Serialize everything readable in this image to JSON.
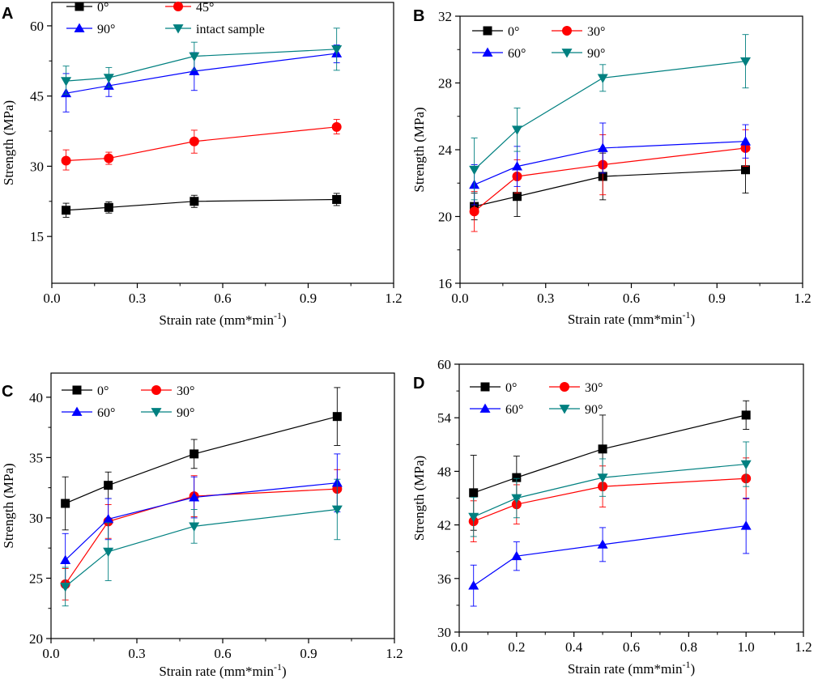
{
  "figure": {
    "marker_colors": {
      "square": "#000000",
      "circle": "#ff0000",
      "triangle-up": "#0000ff",
      "triangle-down": "#008080"
    }
  },
  "chart_data": [
    {
      "panel": "A",
      "type": "line",
      "xlabel": "Strain rate (mm*min-1)",
      "xlabel_text": "Strain rate (mm*min",
      "xlabel_sup": "-1",
      "xlabel_close": ")",
      "ylabel": "Strength (MPa)",
      "xlim": [
        0,
        1.2
      ],
      "ylim": [
        5,
        65
      ],
      "xticks": [
        0.0,
        0.3,
        0.6,
        0.9,
        1.2
      ],
      "xtick_labels": [
        "0.0",
        "0.3",
        "0.6",
        "0.9",
        "1.2"
      ],
      "yticks": [
        15,
        30,
        45,
        60
      ],
      "ytick_labels": [
        "15",
        "30",
        "45",
        "60"
      ],
      "x": [
        0.05,
        0.2,
        0.5,
        1.0
      ],
      "legend_position": "top",
      "legend_cols": 2,
      "series": [
        {
          "name": "0°",
          "marker": "square",
          "color": "#000000",
          "values": [
            20.6,
            21.2,
            22.5,
            22.9
          ],
          "err_low": [
            1.5,
            1.2,
            1.3,
            1.3
          ],
          "err_high": [
            1.5,
            1.2,
            1.3,
            1.3
          ]
        },
        {
          "name": "45°",
          "marker": "circle",
          "color": "#ff0000",
          "values": [
            31.2,
            31.7,
            35.3,
            38.4
          ],
          "err_low": [
            2.0,
            1.3,
            2.5,
            1.5
          ],
          "err_high": [
            2.3,
            1.3,
            2.4,
            1.6
          ]
        },
        {
          "name": "90°",
          "marker": "triangle-up",
          "color": "#0000ff",
          "values": [
            45.6,
            47.2,
            50.3,
            54.1
          ],
          "err_low": [
            4.0,
            2.3,
            4.1,
            2.0
          ],
          "err_high": [
            4.2,
            2.3,
            4.0,
            1.8
          ]
        },
        {
          "name": "intact  sample",
          "marker": "triangle-down",
          "color": "#008080",
          "values": [
            48.2,
            48.9,
            53.5,
            55.0
          ],
          "err_low": [
            2.8,
            2.0,
            3.0,
            4.5
          ],
          "err_high": [
            3.2,
            2.2,
            3.0,
            4.5
          ]
        }
      ]
    },
    {
      "panel": "B",
      "type": "line",
      "xlabel": "Strain rate (mm*min-1)",
      "xlabel_text": "Strain rate (mm*min",
      "xlabel_sup": "-1",
      "xlabel_close": ")",
      "ylabel": "Strength (MPa)",
      "xlim": [
        0,
        1.2
      ],
      "ylim": [
        16,
        32
      ],
      "xticks": [
        0.0,
        0.3,
        0.6,
        0.9,
        1.2
      ],
      "xtick_labels": [
        "0.0",
        "0.3",
        "0.6",
        "0.9",
        "1.2"
      ],
      "yticks": [
        16,
        20,
        24,
        28,
        32
      ],
      "ytick_labels": [
        "16",
        "20",
        "24",
        "28",
        "32"
      ],
      "x": [
        0.05,
        0.2,
        0.5,
        1.0
      ],
      "legend_position": "top-left",
      "legend_cols": 2,
      "series": [
        {
          "name": "0°",
          "marker": "square",
          "color": "#000000",
          "values": [
            20.6,
            21.2,
            22.4,
            22.8
          ],
          "err_low": [
            0.8,
            1.2,
            1.4,
            1.4
          ],
          "err_high": [
            0.8,
            1.2,
            1.4,
            1.4
          ]
        },
        {
          "name": "30°",
          "marker": "circle",
          "color": "#ff0000",
          "values": [
            20.3,
            22.4,
            23.1,
            24.1
          ],
          "err_low": [
            1.2,
            1.0,
            1.8,
            1.1
          ],
          "err_high": [
            1.2,
            1.0,
            1.8,
            1.1
          ]
        },
        {
          "name": "60°",
          "marker": "triangle-up",
          "color": "#0000ff",
          "values": [
            21.9,
            23.0,
            24.1,
            24.5
          ],
          "err_low": [
            1.2,
            1.2,
            1.5,
            1.0
          ],
          "err_high": [
            1.2,
            1.2,
            1.5,
            1.0
          ]
        },
        {
          "name": "90°",
          "marker": "triangle-down",
          "color": "#008080",
          "values": [
            22.8,
            25.2,
            28.3,
            29.3
          ],
          "err_low": [
            1.8,
            1.3,
            0.8,
            1.6
          ],
          "err_high": [
            1.9,
            1.3,
            0.8,
            1.6
          ]
        }
      ]
    },
    {
      "panel": "C",
      "type": "line",
      "xlabel": "Strain rate  (mm*min-1)",
      "xlabel_text": "Strain rate  (mm*min",
      "xlabel_sup": "-1",
      "xlabel_close": ")",
      "ylabel": "Strength (MPa)",
      "xlim": [
        0,
        1.2
      ],
      "ylim": [
        20,
        42
      ],
      "xticks": [
        0.0,
        0.3,
        0.6,
        0.9,
        1.2
      ],
      "xtick_labels": [
        "0.0",
        "0.3",
        "0.6",
        "0.9",
        "1.2"
      ],
      "yticks": [
        20,
        25,
        30,
        35,
        40
      ],
      "ytick_labels": [
        "20",
        "25",
        "30",
        "35",
        "40"
      ],
      "x": [
        0.05,
        0.2,
        0.5,
        1.0
      ],
      "legend_position": "top-left",
      "legend_cols": 2,
      "series": [
        {
          "name": "0°",
          "marker": "square",
          "color": "#000000",
          "values": [
            31.2,
            32.7,
            35.3,
            38.4
          ],
          "err_low": [
            2.2,
            1.1,
            1.2,
            2.4
          ],
          "err_high": [
            2.2,
            1.1,
            1.2,
            2.4
          ]
        },
        {
          "name": "30°",
          "marker": "circle",
          "color": "#ff0000",
          "values": [
            24.5,
            29.7,
            31.8,
            32.4
          ],
          "err_low": [
            1.3,
            1.4,
            1.7,
            1.6
          ],
          "err_high": [
            1.3,
            1.4,
            1.7,
            1.6
          ]
        },
        {
          "name": "60°",
          "marker": "triangle-up",
          "color": "#0000ff",
          "values": [
            26.5,
            29.9,
            31.7,
            32.9
          ],
          "err_low": [
            2.2,
            1.7,
            1.7,
            2.4
          ],
          "err_high": [
            2.2,
            1.7,
            1.7,
            2.4
          ]
        },
        {
          "name": "90°",
          "marker": "triangle-down",
          "color": "#008080",
          "values": [
            24.3,
            27.2,
            29.3,
            30.7
          ],
          "err_low": [
            1.6,
            2.4,
            1.4,
            2.5
          ],
          "err_high": [
            1.6,
            2.4,
            1.4,
            2.5
          ]
        }
      ]
    },
    {
      "panel": "D",
      "type": "line",
      "xlabel": "Strain rate (mm*min-1)",
      "xlabel_text": "Strain rate (mm*min",
      "xlabel_sup": "-1",
      "xlabel_close": ")",
      "ylabel": "Strength (MPa)",
      "xlim": [
        0,
        1.2
      ],
      "ylim": [
        30,
        60
      ],
      "xticks": [
        0.0,
        0.2,
        0.4,
        0.6,
        0.8,
        1.0,
        1.2
      ],
      "xtick_labels": [
        "0.0",
        "0.2",
        "0.4",
        "0.6",
        "0.8",
        "1.0",
        "1.2"
      ],
      "yticks": [
        30,
        36,
        42,
        48,
        54,
        60
      ],
      "ytick_labels": [
        "30",
        "36",
        "42",
        "48",
        "54",
        "60"
      ],
      "x": [
        0.05,
        0.2,
        0.5,
        1.0
      ],
      "legend_position": "top-left",
      "legend_cols": 2,
      "series": [
        {
          "name": "0°",
          "marker": "square",
          "color": "#000000",
          "values": [
            45.6,
            47.3,
            50.5,
            54.3
          ],
          "err_low": [
            4.2,
            2.4,
            3.8,
            1.6
          ],
          "err_high": [
            4.2,
            2.4,
            3.8,
            1.6
          ]
        },
        {
          "name": "30°",
          "marker": "circle",
          "color": "#ff0000",
          "values": [
            42.4,
            44.3,
            46.3,
            47.2
          ],
          "err_low": [
            2.3,
            2.2,
            2.3,
            2.3
          ],
          "err_high": [
            2.3,
            2.2,
            2.3,
            2.3
          ]
        },
        {
          "name": "60°",
          "marker": "triangle-up",
          "color": "#0000ff",
          "values": [
            35.2,
            38.5,
            39.8,
            41.9
          ],
          "err_low": [
            2.3,
            1.6,
            1.9,
            3.1
          ],
          "err_high": [
            2.3,
            1.6,
            1.9,
            3.1
          ]
        },
        {
          "name": "90°",
          "marker": "triangle-down",
          "color": "#008080",
          "values": [
            42.9,
            45.0,
            47.3,
            48.8
          ],
          "err_low": [
            2.2,
            2.2,
            2.1,
            2.5
          ],
          "err_high": [
            2.2,
            2.2,
            2.1,
            2.5
          ]
        }
      ]
    }
  ]
}
